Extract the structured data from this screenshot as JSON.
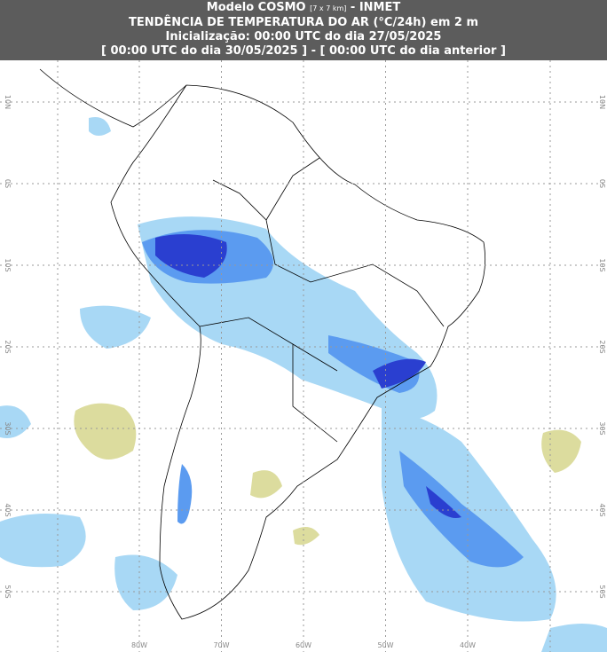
{
  "header": {
    "model": "Modelo COSMO",
    "resolution": "[7 x 7 km]",
    "source": "- INMET",
    "title": "TENDÊNCIA DE TEMPERATURA DO AR (°C/24h) em 2 m",
    "init": "Inicialização: 00:00 UTC do dia 27/05/2025",
    "period": "[ 00:00 UTC do dia 30/05/2025 ] - [ 00:00 UTC do dia anterior ]"
  },
  "grid": {
    "lat_labels": [
      "10N",
      "0S",
      "10S",
      "20S",
      "30S",
      "40S",
      "50S"
    ],
    "lon_labels": [
      "80W",
      "70W",
      "60W",
      "50W",
      "40W"
    ]
  }
}
